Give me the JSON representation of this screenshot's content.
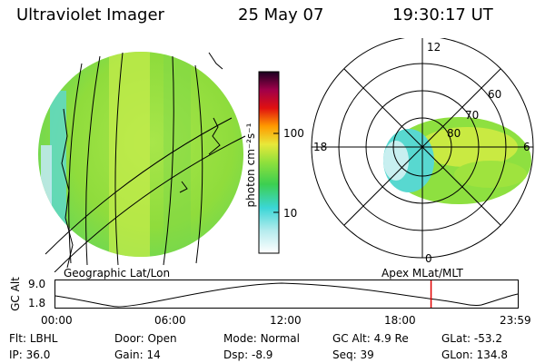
{
  "header": {
    "title": "Ultraviolet Imager",
    "date": "25 May 07",
    "time": "19:30:17 UT"
  },
  "colorbar": {
    "unit_label": "photon cm⁻²s⁻¹",
    "ticks": [
      "100",
      "10"
    ]
  },
  "panels": {
    "left_caption": "Geographic Lat/Lon",
    "right_caption": "Apex MLat/MLT"
  },
  "polar": {
    "mlt_labels": {
      "top": "12",
      "left": "18",
      "right": "6",
      "bottom": "0"
    },
    "lat_labels": [
      "60",
      "70",
      "80"
    ]
  },
  "altitude": {
    "axis_label": "GC Alt",
    "ticks": [
      "9.0",
      "1.8"
    ],
    "time_ticks": [
      "00:00",
      "06:00",
      "12:00",
      "18:00",
      "23:59"
    ],
    "current_time_fraction": 0.8125,
    "marker_color": "#e00000"
  },
  "info": {
    "flt_label": "Flt:",
    "flt_value": "LBHL",
    "ip_label": "IP:",
    "ip_value": "36.0",
    "door_label": "Door:",
    "door_value": "Open",
    "gain_label": "Gain:",
    "gain_value": "14",
    "mode_label": "Mode:",
    "mode_value": "Normal",
    "dsp_label": "Dsp:",
    "dsp_value": "-8.9",
    "gcalt_label": "GC Alt:",
    "gcalt_value": "4.9 Re",
    "seq_label": "Seq:",
    "seq_value": "39",
    "glat_label": "GLat:",
    "glat_value": "-53.2",
    "glon_label": "GLon:",
    "glon_value": "134.8"
  }
}
